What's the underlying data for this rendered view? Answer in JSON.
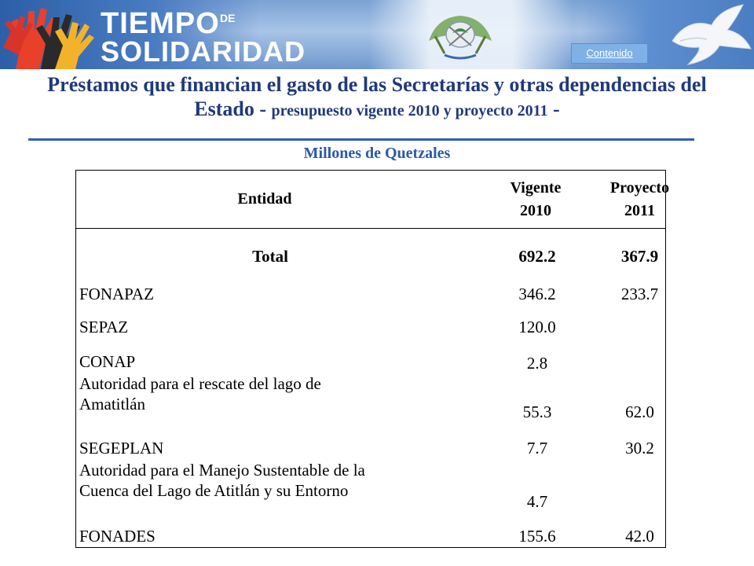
{
  "banner": {
    "logo_line1": "TIEMPO",
    "logo_de": "DE",
    "logo_line2": "SOLIDARIDAD",
    "contenido_label": "Contenido"
  },
  "title": {
    "main": "Préstamos que financian el gasto de las Secretarías y otras dependencias del Estado -",
    "suffix": "presupuesto vigente 2010 y proyecto 2011",
    "dash": "-"
  },
  "subtitle": "Millones de Quetzales",
  "table": {
    "headers": {
      "entidad": "Entidad",
      "vigente_line1": "Vigente",
      "vigente_line2": "2010",
      "proyecto_line1": "Proyecto",
      "proyecto_line2": "2011"
    },
    "total": {
      "label": "Total",
      "vigente": "692.2",
      "proyecto": "367.9"
    },
    "rows": [
      {
        "entidad": "FONAPAZ",
        "vigente": "346.2",
        "proyecto": "233.7"
      },
      {
        "entidad": "SEPAZ",
        "vigente": "120.0",
        "proyecto": ""
      },
      {
        "entidad": "CONAP",
        "vigente": "2.8",
        "proyecto": ""
      },
      {
        "entidad_line1": "Autoridad para el rescate del lago de",
        "entidad_line2": "Amatitlán",
        "vigente": "55.3",
        "proyecto": "62.0"
      },
      {
        "entidad": "SEGEPLAN",
        "vigente": "7.7",
        "proyecto": "30.2"
      },
      {
        "entidad_line1": "Autoridad para el Manejo Sustentable de la",
        "entidad_line2": "Cuenca del Lago de Atitlán y su Entorno",
        "vigente": "4.7",
        "proyecto": ""
      },
      {
        "entidad": "FONADES",
        "vigente": "155.6",
        "proyecto": "42.0"
      }
    ]
  },
  "colors": {
    "title": "#1f3a7a",
    "subtitle": "#2a5aa8",
    "rule": "#2e5eb8",
    "banner_blue": "#4a7cc2"
  }
}
